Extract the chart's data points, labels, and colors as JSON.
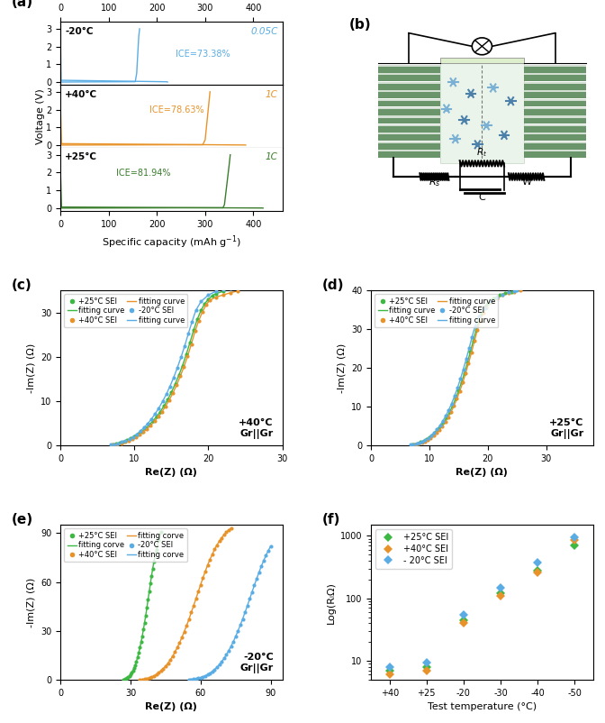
{
  "panel_a": {
    "colors": [
      "#5aade4",
      "#e8932a",
      "#3a7d2c"
    ],
    "temps": [
      "-20°C",
      "+40°C",
      "+25°C"
    ],
    "rates": [
      "0.05C",
      "1C",
      "1C"
    ],
    "ices": [
      "ICE=73.38%",
      "ICE=78.63%",
      "ICE=81.94%"
    ]
  },
  "panel_c": {
    "title": "+40°C\nGr||Gr",
    "xlim": [
      0,
      30
    ],
    "ylim": [
      0,
      35
    ],
    "xticks": [
      0,
      10,
      20,
      30
    ],
    "yticks": [
      0,
      10,
      20,
      30
    ],
    "xlabel": "Re(Z) (Ω)",
    "ylabel": "-Im(Z) (Ω)",
    "series": [
      {
        "label": "+25°C SEI",
        "dot_color": "#3db843",
        "line_color": "#3db843",
        "re": [
          7.0,
          7.5,
          8.0,
          8.5,
          9.0,
          9.5,
          10.0,
          10.5,
          11.0,
          11.5,
          12.0,
          12.5,
          13.0,
          13.5,
          14.0,
          14.5,
          15.0,
          15.5,
          16.0,
          16.5,
          17.0,
          17.5,
          18.0,
          18.5,
          19.0,
          19.5,
          20.0,
          20.5,
          21.0,
          22.0
        ],
        "im": [
          0.1,
          0.3,
          0.5,
          0.8,
          1.1,
          1.5,
          2.0,
          2.5,
          3.1,
          3.8,
          4.6,
          5.5,
          6.5,
          7.6,
          8.9,
          10.3,
          12.0,
          13.8,
          15.8,
          18.0,
          20.5,
          23.2,
          26.0,
          28.5,
          30.5,
          32.0,
          33.0,
          33.8,
          34.3,
          34.8
        ]
      },
      {
        "label": "+40°C SEI",
        "dot_color": "#e8932a",
        "line_color": "#e8932a",
        "re": [
          7.2,
          7.7,
          8.2,
          8.7,
          9.2,
          9.7,
          10.2,
          10.7,
          11.2,
          11.7,
          12.2,
          12.7,
          13.2,
          13.7,
          14.2,
          14.7,
          15.2,
          15.7,
          16.2,
          16.7,
          17.2,
          17.7,
          18.2,
          18.7,
          19.2,
          19.7,
          20.2,
          21.0,
          22.0,
          23.0,
          24.0
        ],
        "im": [
          0.1,
          0.2,
          0.4,
          0.7,
          1.0,
          1.4,
          1.9,
          2.4,
          3.0,
          3.7,
          4.5,
          5.4,
          6.4,
          7.5,
          8.8,
          10.2,
          11.8,
          13.6,
          15.6,
          17.8,
          20.2,
          22.9,
          25.8,
          28.2,
          30.2,
          31.8,
          32.8,
          33.5,
          34.0,
          34.5,
          34.9
        ]
      },
      {
        "label": "-20°C SEI",
        "dot_color": "#5aade4",
        "line_color": "#5aade4",
        "re": [
          6.8,
          7.3,
          7.8,
          8.3,
          8.8,
          9.3,
          9.8,
          10.3,
          10.8,
          11.3,
          11.8,
          12.3,
          12.8,
          13.3,
          13.8,
          14.3,
          14.8,
          15.3,
          15.8,
          16.3,
          16.8,
          17.3,
          17.8,
          18.3,
          19.0,
          20.0,
          21.0,
          22.0,
          23.0
        ],
        "im": [
          0.1,
          0.2,
          0.4,
          0.7,
          1.0,
          1.4,
          1.9,
          2.5,
          3.2,
          4.0,
          4.9,
          5.9,
          7.1,
          8.4,
          9.9,
          11.5,
          13.3,
          15.3,
          17.5,
          19.9,
          22.5,
          25.3,
          28.0,
          30.5,
          32.5,
          34.0,
          34.8,
          35.2,
          35.5
        ]
      }
    ]
  },
  "panel_d": {
    "title": "+25°C\nGr||Gr",
    "xlim": [
      0,
      38
    ],
    "ylim": [
      0,
      40
    ],
    "xticks": [
      0,
      10,
      20,
      30
    ],
    "yticks": [
      0,
      10,
      20,
      30,
      40
    ],
    "xlabel": "Re(Z) (Ω)",
    "ylabel": "-Im(Z) (Ω)",
    "series": [
      {
        "label": "+25°C SEI",
        "dot_color": "#3db843",
        "line_color": "#3db843",
        "re": [
          7.0,
          7.5,
          8.0,
          8.5,
          9.0,
          9.5,
          10.0,
          10.5,
          11.0,
          11.5,
          12.0,
          12.5,
          13.0,
          13.5,
          14.0,
          14.5,
          15.0,
          15.5,
          16.0,
          16.5,
          17.0,
          17.5,
          18.0,
          18.5,
          19.0,
          19.5,
          20.0,
          20.5,
          21.0,
          22.0,
          23.0,
          24.0
        ],
        "im": [
          0.1,
          0.3,
          0.5,
          0.8,
          1.1,
          1.5,
          2.0,
          2.6,
          3.3,
          4.1,
          5.0,
          6.1,
          7.3,
          8.7,
          10.3,
          12.1,
          14.1,
          16.3,
          18.7,
          21.3,
          24.1,
          27.0,
          29.8,
          32.3,
          34.3,
          35.8,
          36.8,
          37.5,
          38.0,
          38.8,
          39.3,
          39.7
        ]
      },
      {
        "label": "+40°C SEI",
        "dot_color": "#e8932a",
        "line_color": "#e8932a",
        "re": [
          7.2,
          7.7,
          8.2,
          8.7,
          9.2,
          9.7,
          10.2,
          10.7,
          11.2,
          11.7,
          12.2,
          12.7,
          13.2,
          13.7,
          14.2,
          14.7,
          15.2,
          15.7,
          16.2,
          16.7,
          17.2,
          17.7,
          18.2,
          18.7,
          19.2,
          19.7,
          20.5,
          21.5,
          22.5,
          23.5,
          24.5,
          25.5
        ],
        "im": [
          0.1,
          0.2,
          0.4,
          0.7,
          1.0,
          1.4,
          1.9,
          2.5,
          3.2,
          4.0,
          4.9,
          6.0,
          7.2,
          8.6,
          10.2,
          12.0,
          14.0,
          16.2,
          18.6,
          21.2,
          24.0,
          26.9,
          29.7,
          32.2,
          34.2,
          35.7,
          37.0,
          38.0,
          38.8,
          39.3,
          39.7,
          40.0
        ]
      },
      {
        "label": "-20°C SEI",
        "dot_color": "#5aade4",
        "line_color": "#5aade4",
        "re": [
          6.8,
          7.3,
          7.8,
          8.3,
          8.8,
          9.3,
          9.8,
          10.3,
          10.8,
          11.3,
          11.8,
          12.3,
          12.8,
          13.3,
          13.8,
          14.3,
          14.8,
          15.3,
          15.8,
          16.3,
          16.8,
          17.3,
          17.8,
          18.5,
          19.5,
          20.5,
          21.5,
          22.5,
          23.5,
          24.5,
          25.0
        ],
        "im": [
          0.1,
          0.2,
          0.4,
          0.7,
          1.0,
          1.4,
          1.9,
          2.5,
          3.2,
          4.1,
          5.1,
          6.3,
          7.6,
          9.1,
          10.8,
          12.7,
          14.8,
          17.1,
          19.6,
          22.3,
          25.1,
          28.0,
          30.7,
          33.2,
          35.5,
          37.2,
          38.3,
          39.0,
          39.5,
          39.8,
          40.0
        ]
      }
    ]
  },
  "panel_e": {
    "title": "-20°C\nGr||Gr",
    "xlim": [
      0,
      95
    ],
    "ylim": [
      0,
      95
    ],
    "xticks": [
      0,
      30,
      60,
      90
    ],
    "yticks": [
      0,
      30,
      60,
      90
    ],
    "xlabel": "Re(Z) (Ω)",
    "ylabel": "-Im(Z) (Ω)",
    "series": [
      {
        "label": "+25°C SEI",
        "dot_color": "#3db843",
        "line_color": "#3db843",
        "re": [
          27,
          27.5,
          28,
          28.5,
          29,
          29.5,
          30,
          30.5,
          31,
          31.5,
          32,
          32.5,
          33,
          33.5,
          34,
          34.5,
          35,
          35.5,
          36,
          36.5,
          37,
          37.5,
          38,
          38.5,
          39,
          39.5,
          40,
          41,
          42,
          43
        ],
        "im": [
          0.1,
          0.3,
          0.6,
          1.0,
          1.5,
          2.2,
          3.1,
          4.2,
          5.5,
          7.1,
          9.0,
          11.2,
          13.7,
          16.5,
          19.6,
          23.0,
          26.7,
          30.7,
          35.0,
          39.5,
          44.2,
          49.1,
          54.1,
          59.0,
          63.8,
          68.3,
          72.5,
          79.5,
          85.5,
          90.5
        ]
      },
      {
        "label": "+40°C SEI",
        "dot_color": "#e8932a",
        "line_color": "#e8932a",
        "re": [
          34,
          35,
          36,
          37,
          38,
          39,
          40,
          41,
          42,
          43,
          44,
          45,
          46,
          47,
          48,
          49,
          50,
          51,
          52,
          53,
          54,
          55,
          56,
          57,
          58,
          59,
          60,
          61,
          62,
          63,
          64,
          65,
          66,
          67,
          68,
          69,
          70,
          71,
          72,
          73
        ],
        "im": [
          0.1,
          0.2,
          0.4,
          0.7,
          1.1,
          1.6,
          2.3,
          3.1,
          4.1,
          5.3,
          6.7,
          8.3,
          10.1,
          12.1,
          14.4,
          16.9,
          19.7,
          22.7,
          26.0,
          29.5,
          33.2,
          37.1,
          41.2,
          45.4,
          49.7,
          54.0,
          58.3,
          62.5,
          66.5,
          70.3,
          73.8,
          77.0,
          80.0,
          82.7,
          85.0,
          87.1,
          88.9,
          90.5,
          91.8,
          93.0
        ]
      },
      {
        "label": "-20°C SEI",
        "dot_color": "#5aade4",
        "line_color": "#5aade4",
        "re": [
          55,
          56,
          57,
          58,
          59,
          60,
          61,
          62,
          63,
          64,
          65,
          66,
          67,
          68,
          69,
          70,
          71,
          72,
          73,
          74,
          75,
          76,
          77,
          78,
          79,
          80,
          81,
          82,
          83,
          84,
          85,
          86,
          87,
          88,
          89,
          90
        ],
        "im": [
          0.1,
          0.2,
          0.4,
          0.6,
          0.9,
          1.3,
          1.8,
          2.4,
          3.1,
          4.0,
          5.0,
          6.2,
          7.6,
          9.2,
          11.0,
          13.0,
          15.2,
          17.7,
          20.4,
          23.3,
          26.5,
          29.9,
          33.5,
          37.3,
          41.2,
          45.3,
          49.5,
          53.7,
          57.9,
          62.0,
          65.9,
          69.6,
          73.1,
          76.3,
          79.3,
          82.0
        ]
      }
    ]
  },
  "panel_f": {
    "xlabel": "Test temperature (°C)",
    "ylabel": "Log(RᵢΩ)",
    "xlim_labels": [
      "+40",
      "+25",
      "-20",
      "-30",
      "-40",
      "-50"
    ],
    "ylim": [
      5,
      1500
    ],
    "series": [
      {
        "label": "+25°C SEI",
        "color": "#3db843",
        "x": [
          1,
          2,
          3,
          4,
          5,
          6
        ],
        "y": [
          7,
          8,
          45,
          120,
          280,
          700
        ]
      },
      {
        "label": "+40°C SEI",
        "color": "#e8932a",
        "x": [
          1,
          2,
          3,
          4,
          5,
          6
        ],
        "y": [
          6,
          7,
          40,
          110,
          260,
          850
        ]
      },
      {
        "label": "- 20°C SEI",
        "color": "#5aade4",
        "x": [
          1,
          2,
          3,
          4,
          5,
          6
        ],
        "y": [
          8,
          9.5,
          55,
          150,
          370,
          950
        ]
      }
    ]
  }
}
